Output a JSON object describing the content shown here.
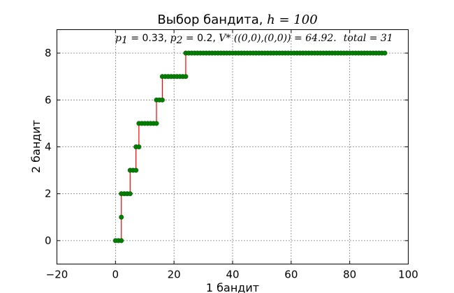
{
  "chart_data": {
    "type": "scatter",
    "title_text": "Выбор бандита, ",
    "title_math": "h = 100",
    "annotation": {
      "p1_symbol": "p",
      "p1_sub": "1",
      "p1_value": " = 0.33, ",
      "p2_symbol": "p",
      "p2_sub": "2",
      "p2_value": " = 0.2, ",
      "v_expr": "V* ((0,0),(0,0)) = 64.92.",
      "total_expr": "total = 31"
    },
    "xlabel": "1 бандит",
    "ylabel": "2 бандит",
    "xlim": [
      -20,
      100
    ],
    "ylim": [
      -1,
      9
    ],
    "xticks": [
      -20,
      0,
      20,
      40,
      60,
      80,
      100
    ],
    "yticks": [
      0,
      2,
      4,
      6,
      8
    ],
    "grid": true,
    "marker_color": "#008000",
    "line_color": "#ff0000",
    "path_points": [
      [
        0,
        0
      ],
      [
        1,
        0
      ],
      [
        2,
        0
      ],
      [
        2,
        1
      ],
      [
        2,
        2
      ],
      [
        3,
        2
      ],
      [
        4,
        2
      ],
      [
        5,
        2
      ],
      [
        5,
        3
      ],
      [
        6,
        3
      ],
      [
        7,
        3
      ],
      [
        7,
        4
      ],
      [
        8,
        4
      ],
      [
        8,
        5
      ],
      [
        9,
        5
      ],
      [
        10,
        5
      ],
      [
        11,
        5
      ],
      [
        12,
        5
      ],
      [
        13,
        5
      ],
      [
        14,
        5
      ],
      [
        14,
        6
      ],
      [
        15,
        6
      ],
      [
        16,
        6
      ],
      [
        16,
        7
      ],
      [
        17,
        7
      ],
      [
        18,
        7
      ],
      [
        19,
        7
      ],
      [
        20,
        7
      ],
      [
        21,
        7
      ],
      [
        22,
        7
      ],
      [
        23,
        7
      ],
      [
        24,
        7
      ],
      [
        24,
        8
      ],
      [
        25,
        8
      ],
      [
        26,
        8
      ],
      [
        27,
        8
      ],
      [
        28,
        8
      ],
      [
        29,
        8
      ],
      [
        30,
        8
      ],
      [
        31,
        8
      ],
      [
        32,
        8
      ],
      [
        33,
        8
      ],
      [
        34,
        8
      ],
      [
        35,
        8
      ],
      [
        36,
        8
      ],
      [
        37,
        8
      ],
      [
        38,
        8
      ],
      [
        39,
        8
      ],
      [
        40,
        8
      ],
      [
        41,
        8
      ],
      [
        42,
        8
      ],
      [
        43,
        8
      ],
      [
        44,
        8
      ],
      [
        45,
        8
      ],
      [
        46,
        8
      ],
      [
        47,
        8
      ],
      [
        48,
        8
      ],
      [
        49,
        8
      ],
      [
        50,
        8
      ],
      [
        51,
        8
      ],
      [
        52,
        8
      ],
      [
        53,
        8
      ],
      [
        54,
        8
      ],
      [
        55,
        8
      ],
      [
        56,
        8
      ],
      [
        57,
        8
      ],
      [
        58,
        8
      ],
      [
        59,
        8
      ],
      [
        60,
        8
      ],
      [
        61,
        8
      ],
      [
        62,
        8
      ],
      [
        63,
        8
      ],
      [
        64,
        8
      ],
      [
        65,
        8
      ],
      [
        66,
        8
      ],
      [
        67,
        8
      ],
      [
        68,
        8
      ],
      [
        69,
        8
      ],
      [
        70,
        8
      ],
      [
        71,
        8
      ],
      [
        72,
        8
      ],
      [
        73,
        8
      ],
      [
        74,
        8
      ],
      [
        75,
        8
      ],
      [
        76,
        8
      ],
      [
        77,
        8
      ],
      [
        78,
        8
      ],
      [
        79,
        8
      ],
      [
        80,
        8
      ],
      [
        81,
        8
      ],
      [
        82,
        8
      ],
      [
        83,
        8
      ],
      [
        84,
        8
      ],
      [
        85,
        8
      ],
      [
        86,
        8
      ],
      [
        87,
        8
      ],
      [
        88,
        8
      ],
      [
        89,
        8
      ],
      [
        90,
        8
      ],
      [
        91,
        8
      ],
      [
        92,
        8
      ]
    ]
  }
}
